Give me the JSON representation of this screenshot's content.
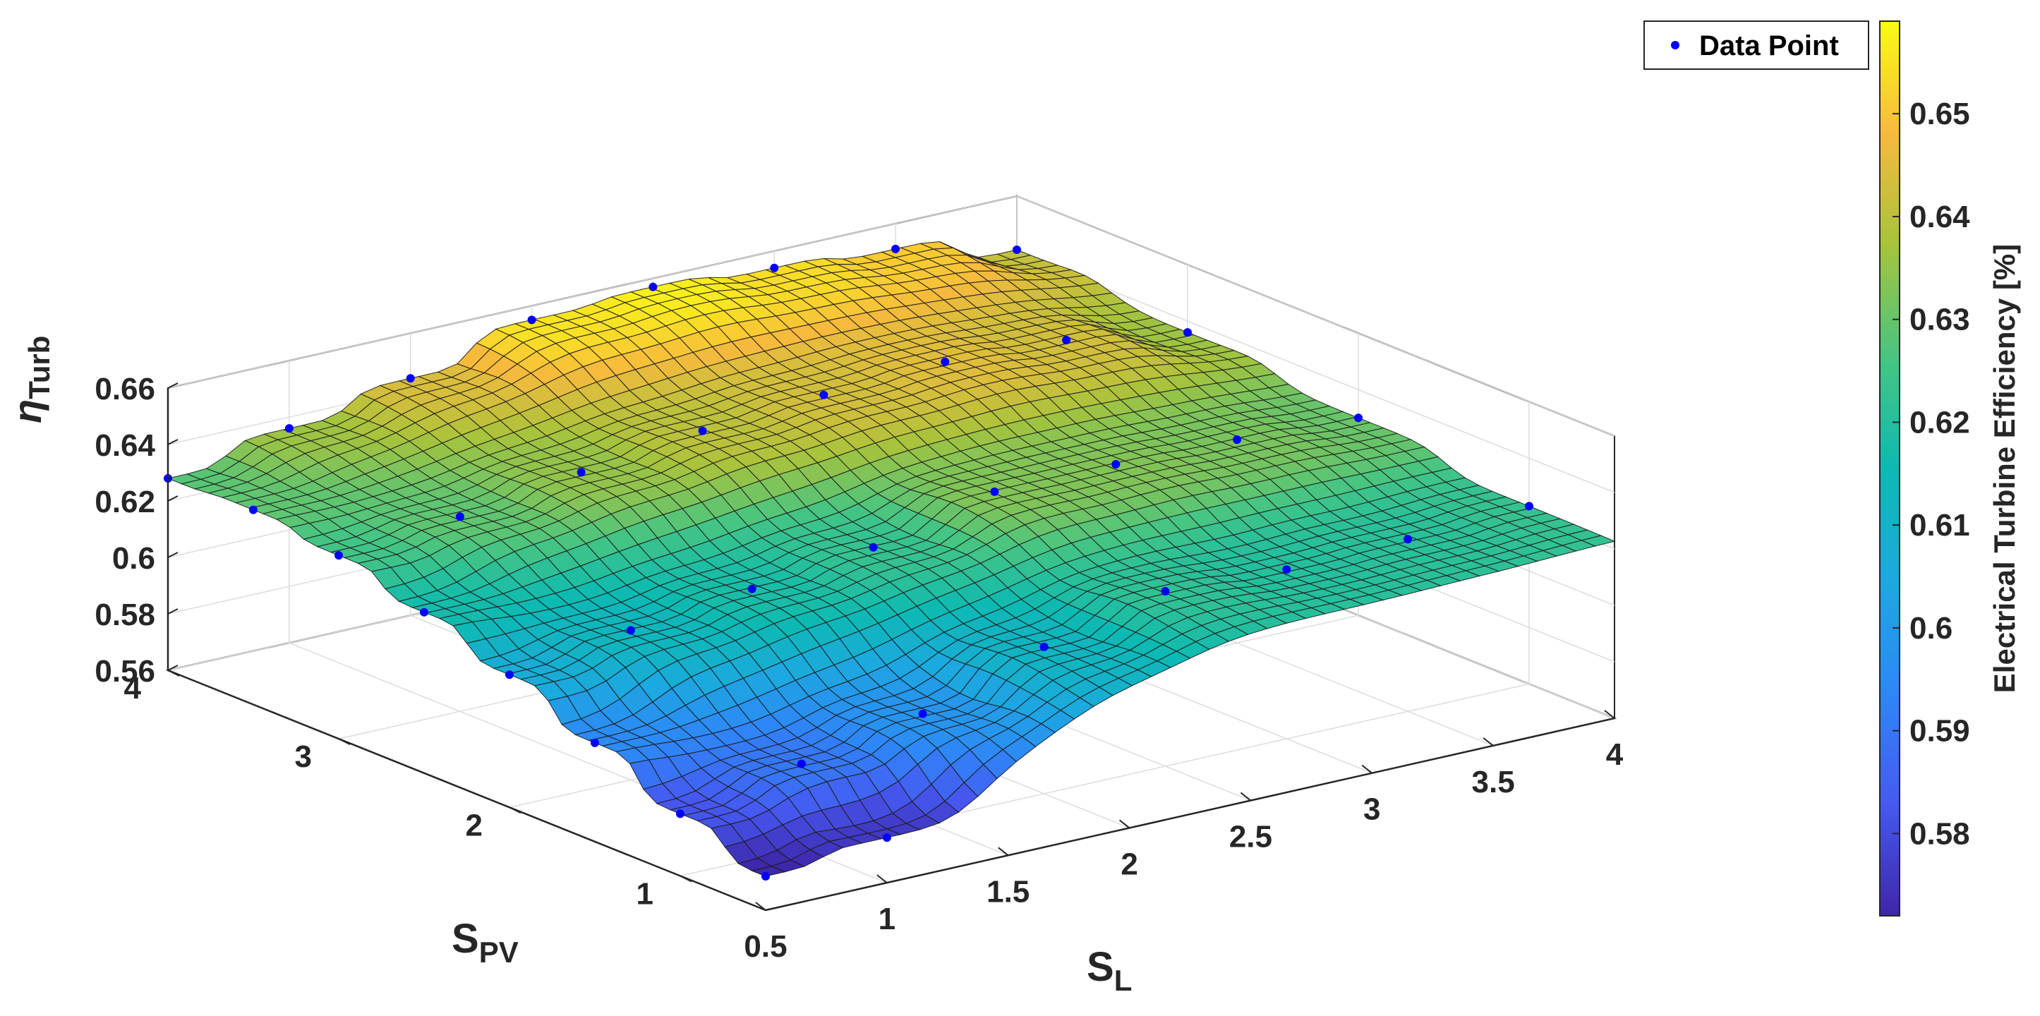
{
  "chart_data": {
    "type": "surface",
    "xlabel_main": "S",
    "xlabel_sub": "L",
    "ylabel_main": "S",
    "ylabel_sub": "PV",
    "zlabel_main": "η",
    "zlabel_sub": "Turb",
    "xlim": [
      0.5,
      4
    ],
    "ylim": [
      0.5,
      4
    ],
    "zlim": [
      0.56,
      0.66
    ],
    "x_ticks": [
      "0.5",
      "1",
      "1.5",
      "2",
      "2.5",
      "3",
      "3.5",
      "4"
    ],
    "x_tick_values": [
      0.5,
      1,
      1.5,
      2,
      2.5,
      3,
      3.5,
      4
    ],
    "y_ticks": [
      "1",
      "2",
      "3",
      "4"
    ],
    "y_tick_values": [
      1,
      2,
      3,
      4
    ],
    "z_ticks": [
      "0.56",
      "0.58",
      "0.6",
      "0.62",
      "0.64",
      "0.66"
    ],
    "z_tick_values": [
      0.56,
      0.58,
      0.6,
      0.62,
      0.64,
      0.66
    ],
    "grid": true,
    "legend": {
      "label": "Data Point",
      "position": "top-right",
      "marker_color": "#0000ff"
    },
    "colorbar": {
      "label": "Electrical Turbine Efficiency [%]",
      "range": [
        0.572,
        0.659
      ],
      "ticks": [
        "0.58",
        "0.59",
        "0.6",
        "0.61",
        "0.62",
        "0.63",
        "0.64",
        "0.65"
      ],
      "tick_values": [
        0.58,
        0.59,
        0.6,
        0.61,
        0.62,
        0.63,
        0.64,
        0.65
      ],
      "colormap": "parula"
    },
    "data_points": [
      {
        "x": 0.5,
        "y": 4.0,
        "z": 0.628
      },
      {
        "x": 0.5,
        "y": 3.5,
        "z": 0.629
      },
      {
        "x": 0.5,
        "y": 3.0,
        "z": 0.625
      },
      {
        "x": 0.5,
        "y": 2.5,
        "z": 0.617
      },
      {
        "x": 0.5,
        "y": 2.0,
        "z": 0.607
      },
      {
        "x": 0.5,
        "y": 1.5,
        "z": 0.595
      },
      {
        "x": 0.5,
        "y": 1.0,
        "z": 0.582
      },
      {
        "x": 0.5,
        "y": 0.5,
        "z": 0.572
      },
      {
        "x": 1.0,
        "y": 4.0,
        "z": 0.636
      },
      {
        "x": 1.0,
        "y": 3.0,
        "z": 0.629
      },
      {
        "x": 1.0,
        "y": 2.0,
        "z": 0.613
      },
      {
        "x": 1.0,
        "y": 1.0,
        "z": 0.59
      },
      {
        "x": 1.0,
        "y": 0.5,
        "z": 0.576
      },
      {
        "x": 1.5,
        "y": 4.0,
        "z": 0.644
      },
      {
        "x": 1.5,
        "y": 3.0,
        "z": 0.635
      },
      {
        "x": 1.5,
        "y": 2.0,
        "z": 0.618
      },
      {
        "x": 1.5,
        "y": 1.0,
        "z": 0.598
      },
      {
        "x": 2.0,
        "y": 4.0,
        "z": 0.655
      },
      {
        "x": 2.0,
        "y": 3.0,
        "z": 0.64
      },
      {
        "x": 2.0,
        "y": 2.0,
        "z": 0.623
      },
      {
        "x": 2.0,
        "y": 1.0,
        "z": 0.612
      },
      {
        "x": 2.5,
        "y": 4.0,
        "z": 0.657
      },
      {
        "x": 2.5,
        "y": 3.0,
        "z": 0.643
      },
      {
        "x": 2.5,
        "y": 2.0,
        "z": 0.633
      },
      {
        "x": 2.5,
        "y": 1.0,
        "z": 0.622
      },
      {
        "x": 3.0,
        "y": 4.0,
        "z": 0.654
      },
      {
        "x": 3.0,
        "y": 3.0,
        "z": 0.645
      },
      {
        "x": 3.0,
        "y": 2.0,
        "z": 0.633
      },
      {
        "x": 3.0,
        "y": 1.0,
        "z": 0.62
      },
      {
        "x": 3.5,
        "y": 4.0,
        "z": 0.651
      },
      {
        "x": 3.5,
        "y": 3.0,
        "z": 0.643
      },
      {
        "x": 3.5,
        "y": 2.0,
        "z": 0.632
      },
      {
        "x": 3.5,
        "y": 1.0,
        "z": 0.621
      },
      {
        "x": 4.0,
        "y": 4.0,
        "z": 0.641
      },
      {
        "x": 4.0,
        "y": 3.0,
        "z": 0.636
      },
      {
        "x": 4.0,
        "y": 2.0,
        "z": 0.63
      },
      {
        "x": 4.0,
        "y": 1.0,
        "z": 0.623
      }
    ]
  }
}
